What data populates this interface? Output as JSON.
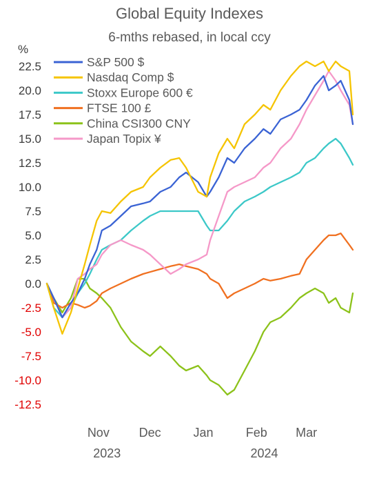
{
  "chart_data": {
    "type": "line",
    "title": "Global Equity Indexes",
    "subtitle": "6-mths rebased, in local ccy",
    "ylabel": "%",
    "ylim": [
      -13,
      24
    ],
    "yticks": [
      "22.5",
      "20.0",
      "17.5",
      "15.0",
      "12.5",
      "10.0",
      "7.5",
      "5.0",
      "2.5",
      "0.0",
      "-2.5",
      "-5.0",
      "-7.5",
      "-10.0",
      "-12.5"
    ],
    "xticks": [
      "Nov",
      "Dec",
      "Jan",
      "Feb",
      "Mar"
    ],
    "year_labels": [
      "2023",
      "2024"
    ],
    "x_start": "2023-10-02",
    "x_end": "2024-03-28",
    "month_starts": [
      "2023-11-01",
      "2023-12-01",
      "2024-01-01",
      "2024-02-01",
      "2024-03-01"
    ],
    "grid": false,
    "legend_position": "top-left",
    "series": [
      {
        "name": "S&P 500 $",
        "color": "#3a63d4",
        "x": [
          "2023-10-02",
          "2023-10-06",
          "2023-10-11",
          "2023-10-16",
          "2023-10-20",
          "2023-10-24",
          "2023-10-27",
          "2023-10-31",
          "2023-11-03",
          "2023-11-08",
          "2023-11-14",
          "2023-11-20",
          "2023-11-27",
          "2023-12-01",
          "2023-12-07",
          "2023-12-13",
          "2023-12-18",
          "2023-12-22",
          "2023-12-29",
          "2024-01-03",
          "2024-01-05",
          "2024-01-10",
          "2024-01-15",
          "2024-01-19",
          "2024-01-25",
          "2024-01-31",
          "2024-02-05",
          "2024-02-09",
          "2024-02-15",
          "2024-02-21",
          "2024-02-26",
          "2024-03-01",
          "2024-03-06",
          "2024-03-11",
          "2024-03-14",
          "2024-03-18",
          "2024-03-21",
          "2024-03-26",
          "2024-03-28"
        ],
        "values": [
          0.0,
          -1.5,
          -3.5,
          -2.0,
          -1.0,
          0.5,
          2.0,
          3.5,
          5.5,
          6.0,
          7.0,
          8.0,
          8.3,
          8.5,
          9.5,
          10.0,
          11.0,
          11.5,
          10.5,
          9.0,
          9.5,
          11.0,
          13.0,
          12.5,
          14.0,
          15.0,
          16.0,
          15.5,
          17.0,
          17.5,
          18.0,
          19.0,
          20.5,
          21.5,
          20.0,
          20.5,
          21.0,
          19.0,
          16.5
        ]
      },
      {
        "name": "Nasdaq Comp $",
        "color": "#f5c400",
        "x": [
          "2023-10-02",
          "2023-10-06",
          "2023-10-11",
          "2023-10-16",
          "2023-10-20",
          "2023-10-24",
          "2023-10-27",
          "2023-10-31",
          "2023-11-03",
          "2023-11-08",
          "2023-11-14",
          "2023-11-20",
          "2023-11-27",
          "2023-12-01",
          "2023-12-07",
          "2023-12-13",
          "2023-12-18",
          "2023-12-22",
          "2023-12-29",
          "2024-01-03",
          "2024-01-05",
          "2024-01-10",
          "2024-01-15",
          "2024-01-19",
          "2024-01-25",
          "2024-01-31",
          "2024-02-05",
          "2024-02-09",
          "2024-02-15",
          "2024-02-21",
          "2024-02-26",
          "2024-03-01",
          "2024-03-06",
          "2024-03-11",
          "2024-03-14",
          "2024-03-18",
          "2024-03-21",
          "2024-03-26",
          "2024-03-28"
        ],
        "values": [
          0.0,
          -2.5,
          -5.2,
          -3.0,
          -0.5,
          2.0,
          4.0,
          6.5,
          7.5,
          7.3,
          8.5,
          9.5,
          10.0,
          11.0,
          12.0,
          12.8,
          13.0,
          12.0,
          9.5,
          9.0,
          11.0,
          13.5,
          15.0,
          14.0,
          16.5,
          17.5,
          18.5,
          18.0,
          20.0,
          21.5,
          22.5,
          23.0,
          22.5,
          23.0,
          22.0,
          23.0,
          22.5,
          22.0,
          17.5
        ]
      },
      {
        "name": "Stoxx Europe 600 €",
        "color": "#3cc8c8",
        "x": [
          "2023-10-02",
          "2023-10-06",
          "2023-10-11",
          "2023-10-16",
          "2023-10-20",
          "2023-10-24",
          "2023-10-27",
          "2023-10-31",
          "2023-11-03",
          "2023-11-08",
          "2023-11-14",
          "2023-11-20",
          "2023-11-27",
          "2023-12-01",
          "2023-12-07",
          "2023-12-13",
          "2023-12-18",
          "2023-12-22",
          "2023-12-29",
          "2024-01-03",
          "2024-01-05",
          "2024-01-10",
          "2024-01-15",
          "2024-01-19",
          "2024-01-25",
          "2024-01-31",
          "2024-02-05",
          "2024-02-09",
          "2024-02-15",
          "2024-02-21",
          "2024-02-26",
          "2024-03-01",
          "2024-03-06",
          "2024-03-11",
          "2024-03-14",
          "2024-03-18",
          "2024-03-21",
          "2024-03-26",
          "2024-03-28"
        ],
        "values": [
          0.0,
          -2.5,
          -3.5,
          -2.5,
          -1.0,
          0.0,
          1.0,
          2.5,
          3.5,
          4.0,
          4.5,
          5.5,
          6.5,
          7.0,
          7.5,
          7.5,
          7.5,
          7.5,
          7.5,
          6.0,
          5.5,
          5.5,
          6.5,
          7.5,
          8.5,
          9.0,
          9.5,
          10.0,
          10.5,
          11.0,
          11.5,
          12.5,
          13.0,
          14.0,
          14.5,
          15.0,
          14.5,
          13.0,
          12.3
        ]
      },
      {
        "name": "FTSE 100  £",
        "color": "#f07020",
        "x": [
          "2023-10-02",
          "2023-10-06",
          "2023-10-11",
          "2023-10-16",
          "2023-10-20",
          "2023-10-24",
          "2023-10-27",
          "2023-10-31",
          "2023-11-03",
          "2023-11-08",
          "2023-11-14",
          "2023-11-20",
          "2023-11-27",
          "2023-12-01",
          "2023-12-07",
          "2023-12-13",
          "2023-12-18",
          "2023-12-22",
          "2023-12-29",
          "2024-01-03",
          "2024-01-05",
          "2024-01-10",
          "2024-01-15",
          "2024-01-19",
          "2024-01-25",
          "2024-01-31",
          "2024-02-05",
          "2024-02-09",
          "2024-02-15",
          "2024-02-21",
          "2024-02-26",
          "2024-03-01",
          "2024-03-06",
          "2024-03-11",
          "2024-03-14",
          "2024-03-18",
          "2024-03-21",
          "2024-03-26",
          "2024-03-28"
        ],
        "values": [
          0.0,
          -2.0,
          -2.5,
          -2.0,
          -2.2,
          -2.5,
          -2.3,
          -1.8,
          -1.0,
          -0.5,
          0.0,
          0.5,
          1.0,
          1.2,
          1.5,
          1.8,
          2.0,
          1.8,
          1.5,
          1.0,
          0.5,
          0.0,
          -1.5,
          -1.0,
          -0.5,
          0.0,
          0.5,
          0.3,
          0.5,
          0.8,
          1.0,
          2.5,
          3.5,
          4.5,
          5.0,
          5.0,
          5.2,
          4.0,
          3.5
        ]
      },
      {
        "name": "China CSI300  CNY",
        "color": "#8cc21a",
        "x": [
          "2023-10-02",
          "2023-10-06",
          "2023-10-11",
          "2023-10-16",
          "2023-10-20",
          "2023-10-24",
          "2023-10-27",
          "2023-10-31",
          "2023-11-03",
          "2023-11-08",
          "2023-11-14",
          "2023-11-20",
          "2023-11-27",
          "2023-12-01",
          "2023-12-07",
          "2023-12-13",
          "2023-12-18",
          "2023-12-22",
          "2023-12-29",
          "2024-01-03",
          "2024-01-05",
          "2024-01-10",
          "2024-01-15",
          "2024-01-19",
          "2024-01-25",
          "2024-01-31",
          "2024-02-05",
          "2024-02-09",
          "2024-02-15",
          "2024-02-21",
          "2024-02-26",
          "2024-03-01",
          "2024-03-06",
          "2024-03-11",
          "2024-03-14",
          "2024-03-18",
          "2024-03-21",
          "2024-03-26",
          "2024-03-28"
        ],
        "values": [
          0.0,
          -1.5,
          -3.0,
          -1.5,
          0.5,
          0.5,
          -0.5,
          -1.0,
          -1.5,
          -2.5,
          -4.5,
          -6.0,
          -7.0,
          -7.5,
          -6.5,
          -7.5,
          -8.5,
          -9.0,
          -8.5,
          -9.5,
          -10.0,
          -10.5,
          -11.5,
          -11.0,
          -9.0,
          -7.0,
          -5.0,
          -4.0,
          -3.5,
          -2.5,
          -1.5,
          -1.0,
          -0.5,
          -1.0,
          -2.0,
          -1.5,
          -2.5,
          -3.0,
          -1.0
        ]
      },
      {
        "name": "Japan Topix ¥",
        "color": "#f598c8",
        "x": [
          "2023-10-02",
          "2023-10-06",
          "2023-10-11",
          "2023-10-16",
          "2023-10-20",
          "2023-10-24",
          "2023-10-27",
          "2023-10-31",
          "2023-11-03",
          "2023-11-08",
          "2023-11-14",
          "2023-11-20",
          "2023-11-27",
          "2023-12-01",
          "2023-12-07",
          "2023-12-13",
          "2023-12-18",
          "2023-12-22",
          "2023-12-29",
          "2024-01-03",
          "2024-01-05",
          "2024-01-10",
          "2024-01-15",
          "2024-01-19",
          "2024-01-25",
          "2024-01-31",
          "2024-02-05",
          "2024-02-09",
          "2024-02-15",
          "2024-02-21",
          "2024-02-26",
          "2024-03-01",
          "2024-03-06",
          "2024-03-11",
          "2024-03-14",
          "2024-03-18",
          "2024-03-21",
          "2024-03-26",
          "2024-03-28"
        ],
        "values": [
          0.0,
          -1.5,
          -3.5,
          -2.5,
          0.5,
          1.0,
          1.5,
          2.0,
          3.0,
          4.0,
          4.5,
          4.0,
          3.5,
          3.0,
          2.0,
          1.0,
          1.5,
          2.0,
          2.5,
          3.0,
          4.5,
          7.0,
          9.5,
          10.0,
          10.5,
          11.0,
          12.0,
          12.5,
          14.0,
          15.0,
          16.5,
          18.0,
          19.5,
          21.0,
          22.0,
          21.0,
          20.0,
          18.5,
          16.5
        ]
      }
    ]
  }
}
